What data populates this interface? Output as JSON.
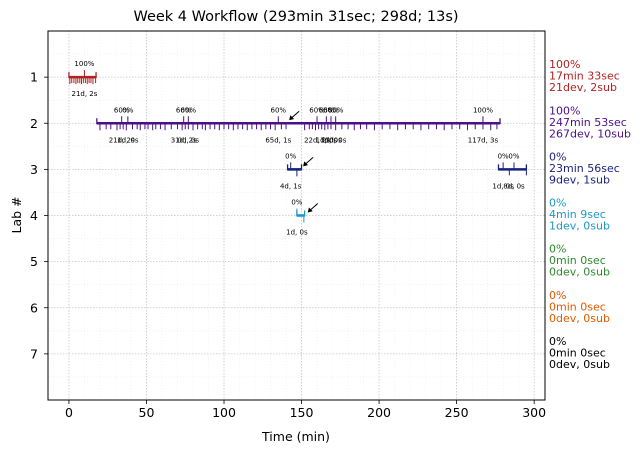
{
  "chart_data": {
    "type": "timeline",
    "title": "Week 4 Workflow (293min 31sec; 298d; 13s)",
    "xlabel": "Time (min)",
    "ylabel": "Lab #",
    "xlim": [
      -13.5,
      307
    ],
    "ylim": [
      8,
      0
    ],
    "xticks": [
      0,
      50,
      100,
      150,
      200,
      250,
      300
    ],
    "yticks": [
      1,
      2,
      3,
      4,
      5,
      6,
      7
    ],
    "grid": true,
    "lanes": [
      {
        "lab": 1,
        "color": "#b22222",
        "segments": [
          [
            0,
            17.5
          ]
        ],
        "marks": [
          0.6,
          1.8,
          3.2,
          4.5,
          5.7,
          7.0,
          8.1,
          9.3,
          10.6,
          11.8,
          13.0,
          14.2,
          15.5,
          17.2
        ],
        "annotations": [
          {
            "x": 10,
            "pct": "100%",
            "note": "21d, 2s"
          }
        ],
        "summary": [
          "100%",
          "17min 33sec",
          "21dev, 2sub"
        ]
      },
      {
        "lab": 2,
        "color": "#4b0f87",
        "segments": [
          [
            18,
            278
          ]
        ],
        "marks": [
          20,
          24,
          27,
          31,
          33,
          35,
          37,
          41,
          44,
          46,
          49,
          51,
          54,
          56,
          59,
          62,
          66,
          70,
          73,
          75,
          77,
          80,
          83,
          86,
          88,
          91,
          94,
          97,
          100,
          103,
          106,
          109,
          112,
          115,
          118,
          121,
          124,
          127,
          130,
          133,
          137,
          140,
          152,
          155,
          157,
          159,
          161,
          163,
          165,
          167,
          169,
          172,
          176,
          180,
          184,
          188,
          192,
          197,
          202,
          207,
          212,
          217,
          222,
          227,
          232,
          237,
          242,
          247,
          252,
          257,
          262,
          267,
          272,
          276
        ],
        "annotations": [
          {
            "x": 34,
            "pct": "60%",
            "note": "21d, 2s"
          },
          {
            "x": 38,
            "pct": "0%",
            "note": "1d, 0s"
          },
          {
            "x": 74,
            "pct": "60%",
            "note": "31d, 2s"
          },
          {
            "x": 77,
            "pct": "60%",
            "note": "0d, 0s"
          },
          {
            "x": 135,
            "pct": "60%",
            "note": "65d, 1s"
          },
          {
            "x": 160,
            "pct": "60%",
            "note": "22d, 2s"
          },
          {
            "x": 166,
            "pct": "60%",
            "note": "1d, 0s"
          },
          {
            "x": 169,
            "pct": "60%",
            "note": "1d, 0s"
          },
          {
            "x": 172,
            "pct": "60%",
            "note": "1d, 0s"
          },
          {
            "x": 267,
            "pct": "100%",
            "note": "117d, 3s"
          }
        ],
        "summary": [
          "100%",
          "247min 53sec",
          "267dev, 10sub"
        ]
      },
      {
        "lab": 3,
        "color": "#1a237e",
        "segments": [
          [
            141,
            150
          ],
          [
            277,
            295
          ]
        ],
        "marks": [
          147,
          284,
          295
        ],
        "annotations": [
          {
            "x": 143,
            "pct": "0%",
            "note": "4d, 1s"
          },
          {
            "x": 280,
            "pct": "0%",
            "note": "1d, 0s"
          },
          {
            "x": 287,
            "pct": "0%",
            "note": "8d, 0s"
          }
        ],
        "summary": [
          "0%",
          "23min 56sec",
          "9dev, 1sub"
        ]
      },
      {
        "lab": 4,
        "color": "#2196c8",
        "segments": [
          [
            147,
            152
          ]
        ],
        "marks": [
          151.5
        ],
        "annotations": [
          {
            "x": 147,
            "pct": "0%",
            "note": "1d, 0s"
          }
        ],
        "summary": [
          "0%",
          "4min 9sec",
          "1dev, 0sub"
        ]
      },
      {
        "lab": 5,
        "color": "#2e8b2e",
        "segments": [],
        "marks": [],
        "annotations": [],
        "summary": [
          "0%",
          "0min 0sec",
          "0dev, 0sub"
        ]
      },
      {
        "lab": 6,
        "color": "#e05a00",
        "segments": [],
        "marks": [],
        "annotations": [],
        "summary": [
          "0%",
          "0min 0sec",
          "0dev, 0sub"
        ]
      },
      {
        "lab": 7,
        "color": "#000000",
        "segments": [],
        "marks": [],
        "annotations": [],
        "summary": [
          "0%",
          "0min 0sec",
          "0dev, 0sub"
        ]
      }
    ],
    "arrows": [
      {
        "lab": 2,
        "to_x": 142
      },
      {
        "lab": 3,
        "to_x": 151
      },
      {
        "lab": 4,
        "to_x": 154
      }
    ]
  }
}
